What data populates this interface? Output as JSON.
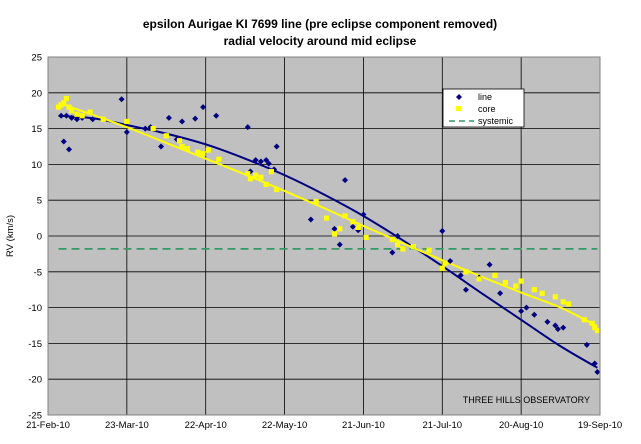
{
  "chart_data": {
    "type": "scatter",
    "title": "epsilon Aurigae KI 7699 line (pre eclipse component removed)",
    "subtitle": "radial velocity around mid eclipse",
    "ylabel": "RV (km/s)",
    "xlabel": "",
    "ylim": [
      -25,
      25
    ],
    "yticks": [
      -25,
      -20,
      -15,
      -10,
      -5,
      0,
      5,
      10,
      15,
      20,
      25
    ],
    "xlim": [
      "2010-02-21",
      "2010-09-19"
    ],
    "xticks": [
      "2010-02-21",
      "2010-03-23",
      "2010-04-22",
      "2010-05-22",
      "2010-06-21",
      "2010-07-21",
      "2010-08-20",
      "2010-09-19"
    ],
    "xtick_labels": [
      "21-Feb-10",
      "23-Mar-10",
      "22-Apr-10",
      "22-May-10",
      "21-Jun-10",
      "21-Jul-10",
      "20-Aug-10",
      "19-Sep-10"
    ],
    "grid": true,
    "legend_position": "top-right",
    "annotation": "THREE HILLS OBSERVATORY",
    "colors": {
      "plot_background": "#c0c0c0",
      "line": "#000080",
      "core": "#ffff00",
      "systemic": "#339966"
    },
    "series": [
      {
        "name": "line",
        "marker": "diamond",
        "points": [
          [
            "2010-02-26",
            16.8
          ],
          [
            "2010-02-27",
            13.2
          ],
          [
            "2010-02-28",
            16.8
          ],
          [
            "2010-03-01",
            12.1
          ],
          [
            "2010-03-02",
            16.5
          ],
          [
            "2010-03-04",
            16.3
          ],
          [
            "2010-03-06",
            16.5
          ],
          [
            "2010-03-10",
            16.3
          ],
          [
            "2010-03-21",
            19.1
          ],
          [
            "2010-03-23",
            14.5
          ],
          [
            "2010-03-30",
            15.0
          ],
          [
            "2010-04-01",
            15.2
          ],
          [
            "2010-04-05",
            12.5
          ],
          [
            "2010-04-08",
            16.5
          ],
          [
            "2010-04-11",
            13.5
          ],
          [
            "2010-04-13",
            16.0
          ],
          [
            "2010-04-18",
            16.4
          ],
          [
            "2010-04-21",
            18.0
          ],
          [
            "2010-04-26",
            16.8
          ],
          [
            "2010-05-08",
            15.2
          ],
          [
            "2010-05-09",
            9.0
          ],
          [
            "2010-05-11",
            10.6
          ],
          [
            "2010-05-13",
            10.4
          ],
          [
            "2010-05-15",
            10.6
          ],
          [
            "2010-05-16",
            10.1
          ],
          [
            "2010-05-18",
            9.3
          ],
          [
            "2010-05-19",
            12.5
          ],
          [
            "2010-06-01",
            2.3
          ],
          [
            "2010-06-10",
            1.0
          ],
          [
            "2010-06-12",
            -1.2
          ],
          [
            "2010-06-14",
            7.8
          ],
          [
            "2010-06-17",
            1.3
          ],
          [
            "2010-06-19",
            0.8
          ],
          [
            "2010-06-21",
            3.0
          ],
          [
            "2010-07-02",
            -2.3
          ],
          [
            "2010-07-04",
            0.0
          ],
          [
            "2010-07-21",
            0.7
          ],
          [
            "2010-07-24",
            -3.5
          ],
          [
            "2010-07-28",
            -5.5
          ],
          [
            "2010-07-30",
            -7.5
          ],
          [
            "2010-08-04",
            -5.8
          ],
          [
            "2010-08-08",
            -4.0
          ],
          [
            "2010-08-12",
            -8.0
          ],
          [
            "2010-08-20",
            -10.5
          ],
          [
            "2010-08-22",
            -10.0
          ],
          [
            "2010-08-25",
            -11.0
          ],
          [
            "2010-08-30",
            -12.0
          ],
          [
            "2010-09-02",
            -12.5
          ],
          [
            "2010-09-03",
            -13.0
          ],
          [
            "2010-09-05",
            -12.8
          ],
          [
            "2010-09-14",
            -15.2
          ],
          [
            "2010-09-17",
            -17.8
          ],
          [
            "2010-09-18",
            -19.0
          ]
        ]
      },
      {
        "name": "core",
        "marker": "square",
        "points": [
          [
            "2010-02-25",
            18.0
          ],
          [
            "2010-02-26",
            18.3
          ],
          [
            "2010-02-27",
            18.6
          ],
          [
            "2010-02-28",
            19.2
          ],
          [
            "2010-03-01",
            18.0
          ],
          [
            "2010-03-02",
            17.5
          ],
          [
            "2010-03-04",
            17.0
          ],
          [
            "2010-03-06",
            16.8
          ],
          [
            "2010-03-09",
            17.3
          ],
          [
            "2010-03-14",
            16.3
          ],
          [
            "2010-03-23",
            16.0
          ],
          [
            "2010-04-02",
            15.0
          ],
          [
            "2010-04-07",
            14.0
          ],
          [
            "2010-04-12",
            13.3
          ],
          [
            "2010-04-13",
            12.5
          ],
          [
            "2010-04-15",
            12.2
          ],
          [
            "2010-04-19",
            11.7
          ],
          [
            "2010-04-21",
            11.5
          ],
          [
            "2010-04-23",
            12.0
          ],
          [
            "2010-04-27",
            10.7
          ],
          [
            "2010-05-08",
            8.7
          ],
          [
            "2010-05-09",
            8.0
          ],
          [
            "2010-05-11",
            8.5
          ],
          [
            "2010-05-13",
            8.2
          ],
          [
            "2010-05-15",
            7.2
          ],
          [
            "2010-05-17",
            9.0
          ],
          [
            "2010-05-19",
            6.5
          ],
          [
            "2010-06-03",
            4.8
          ],
          [
            "2010-06-07",
            2.5
          ],
          [
            "2010-06-10",
            0.3
          ],
          [
            "2010-06-12",
            1.0
          ],
          [
            "2010-06-14",
            2.8
          ],
          [
            "2010-06-17",
            2.0
          ],
          [
            "2010-06-19",
            1.2
          ],
          [
            "2010-06-22",
            -0.2
          ],
          [
            "2010-07-02",
            -0.5
          ],
          [
            "2010-07-04",
            -1.2
          ],
          [
            "2010-07-06",
            -1.8
          ],
          [
            "2010-07-10",
            -1.5
          ],
          [
            "2010-07-16",
            -2.0
          ],
          [
            "2010-07-21",
            -4.5
          ],
          [
            "2010-07-22",
            -3.8
          ],
          [
            "2010-07-30",
            -5.0
          ],
          [
            "2010-08-04",
            -6.0
          ],
          [
            "2010-08-10",
            -5.5
          ],
          [
            "2010-08-14",
            -6.5
          ],
          [
            "2010-08-18",
            -7.0
          ],
          [
            "2010-08-20",
            -6.3
          ],
          [
            "2010-08-25",
            -7.5
          ],
          [
            "2010-08-28",
            -8.0
          ],
          [
            "2010-09-02",
            -8.5
          ],
          [
            "2010-09-05",
            -9.2
          ],
          [
            "2010-09-07",
            -9.5
          ],
          [
            "2010-09-13",
            -11.7
          ],
          [
            "2010-09-16",
            -12.2
          ],
          [
            "2010-09-17",
            -12.8
          ],
          [
            "2010-09-18",
            -13.2
          ]
        ]
      },
      {
        "name": "systemic",
        "style": "dashed",
        "value": -1.8
      }
    ],
    "fits": [
      {
        "series": "line",
        "points": [
          [
            "2010-02-25",
            16.8
          ],
          [
            "2010-03-11",
            16.4
          ],
          [
            "2010-03-23",
            15.5
          ],
          [
            "2010-04-07",
            14.3
          ],
          [
            "2010-04-22",
            12.8
          ],
          [
            "2010-05-07",
            10.8
          ],
          [
            "2010-05-22",
            8.5
          ],
          [
            "2010-06-06",
            5.8
          ],
          [
            "2010-06-21",
            2.8
          ],
          [
            "2010-07-06",
            -0.6
          ],
          [
            "2010-07-21",
            -4.2
          ],
          [
            "2010-08-05",
            -8.0
          ],
          [
            "2010-08-20",
            -11.7
          ],
          [
            "2010-09-04",
            -15.4
          ],
          [
            "2010-09-18",
            -18.4
          ]
        ]
      },
      {
        "series": "core",
        "points": [
          [
            "2010-02-25",
            18.6
          ],
          [
            "2010-03-11",
            16.8
          ],
          [
            "2010-03-23",
            15.2
          ],
          [
            "2010-04-07",
            13.0
          ],
          [
            "2010-04-22",
            10.8
          ],
          [
            "2010-05-07",
            8.6
          ],
          [
            "2010-05-22",
            6.3
          ],
          [
            "2010-06-06",
            3.9
          ],
          [
            "2010-06-21",
            1.4
          ],
          [
            "2010-07-06",
            -1.0
          ],
          [
            "2010-07-21",
            -3.4
          ],
          [
            "2010-08-05",
            -5.7
          ],
          [
            "2010-08-20",
            -7.9
          ],
          [
            "2010-09-04",
            -10.0
          ],
          [
            "2010-09-18",
            -12.6
          ]
        ]
      }
    ]
  }
}
